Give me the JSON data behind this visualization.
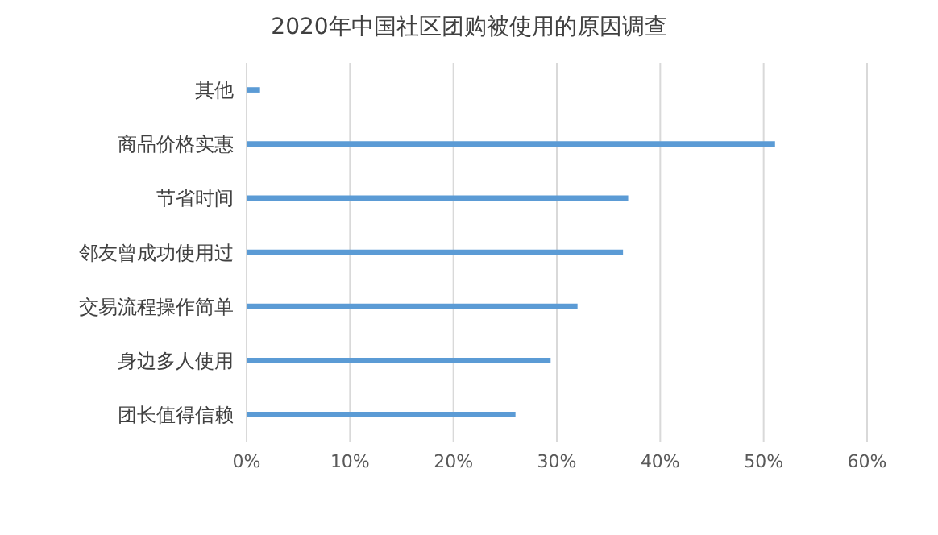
{
  "chart_data": {
    "type": "bar",
    "orientation": "horizontal",
    "title": "2020年中国社区团购被使用的原因调查",
    "categories": [
      "其他",
      "商品价格实惠",
      "节省时间",
      "邻友曾成功使用过",
      "交易流程操作简单",
      "身边多人使用",
      "团长值得信赖"
    ],
    "values": [
      1.3,
      51.1,
      36.9,
      36.4,
      32.0,
      29.4,
      26.0
    ],
    "color": "#5b9bd5",
    "xlim": [
      0,
      60
    ],
    "xticks": [
      {
        "value": 0,
        "label": "0%"
      },
      {
        "value": 10,
        "label": "10%"
      },
      {
        "value": 20,
        "label": "20%"
      },
      {
        "value": 30,
        "label": "30%"
      },
      {
        "value": 40,
        "label": "40%"
      },
      {
        "value": 50,
        "label": "50%"
      },
      {
        "value": 60,
        "label": "60%"
      }
    ],
    "grid": "x",
    "legend": false
  }
}
